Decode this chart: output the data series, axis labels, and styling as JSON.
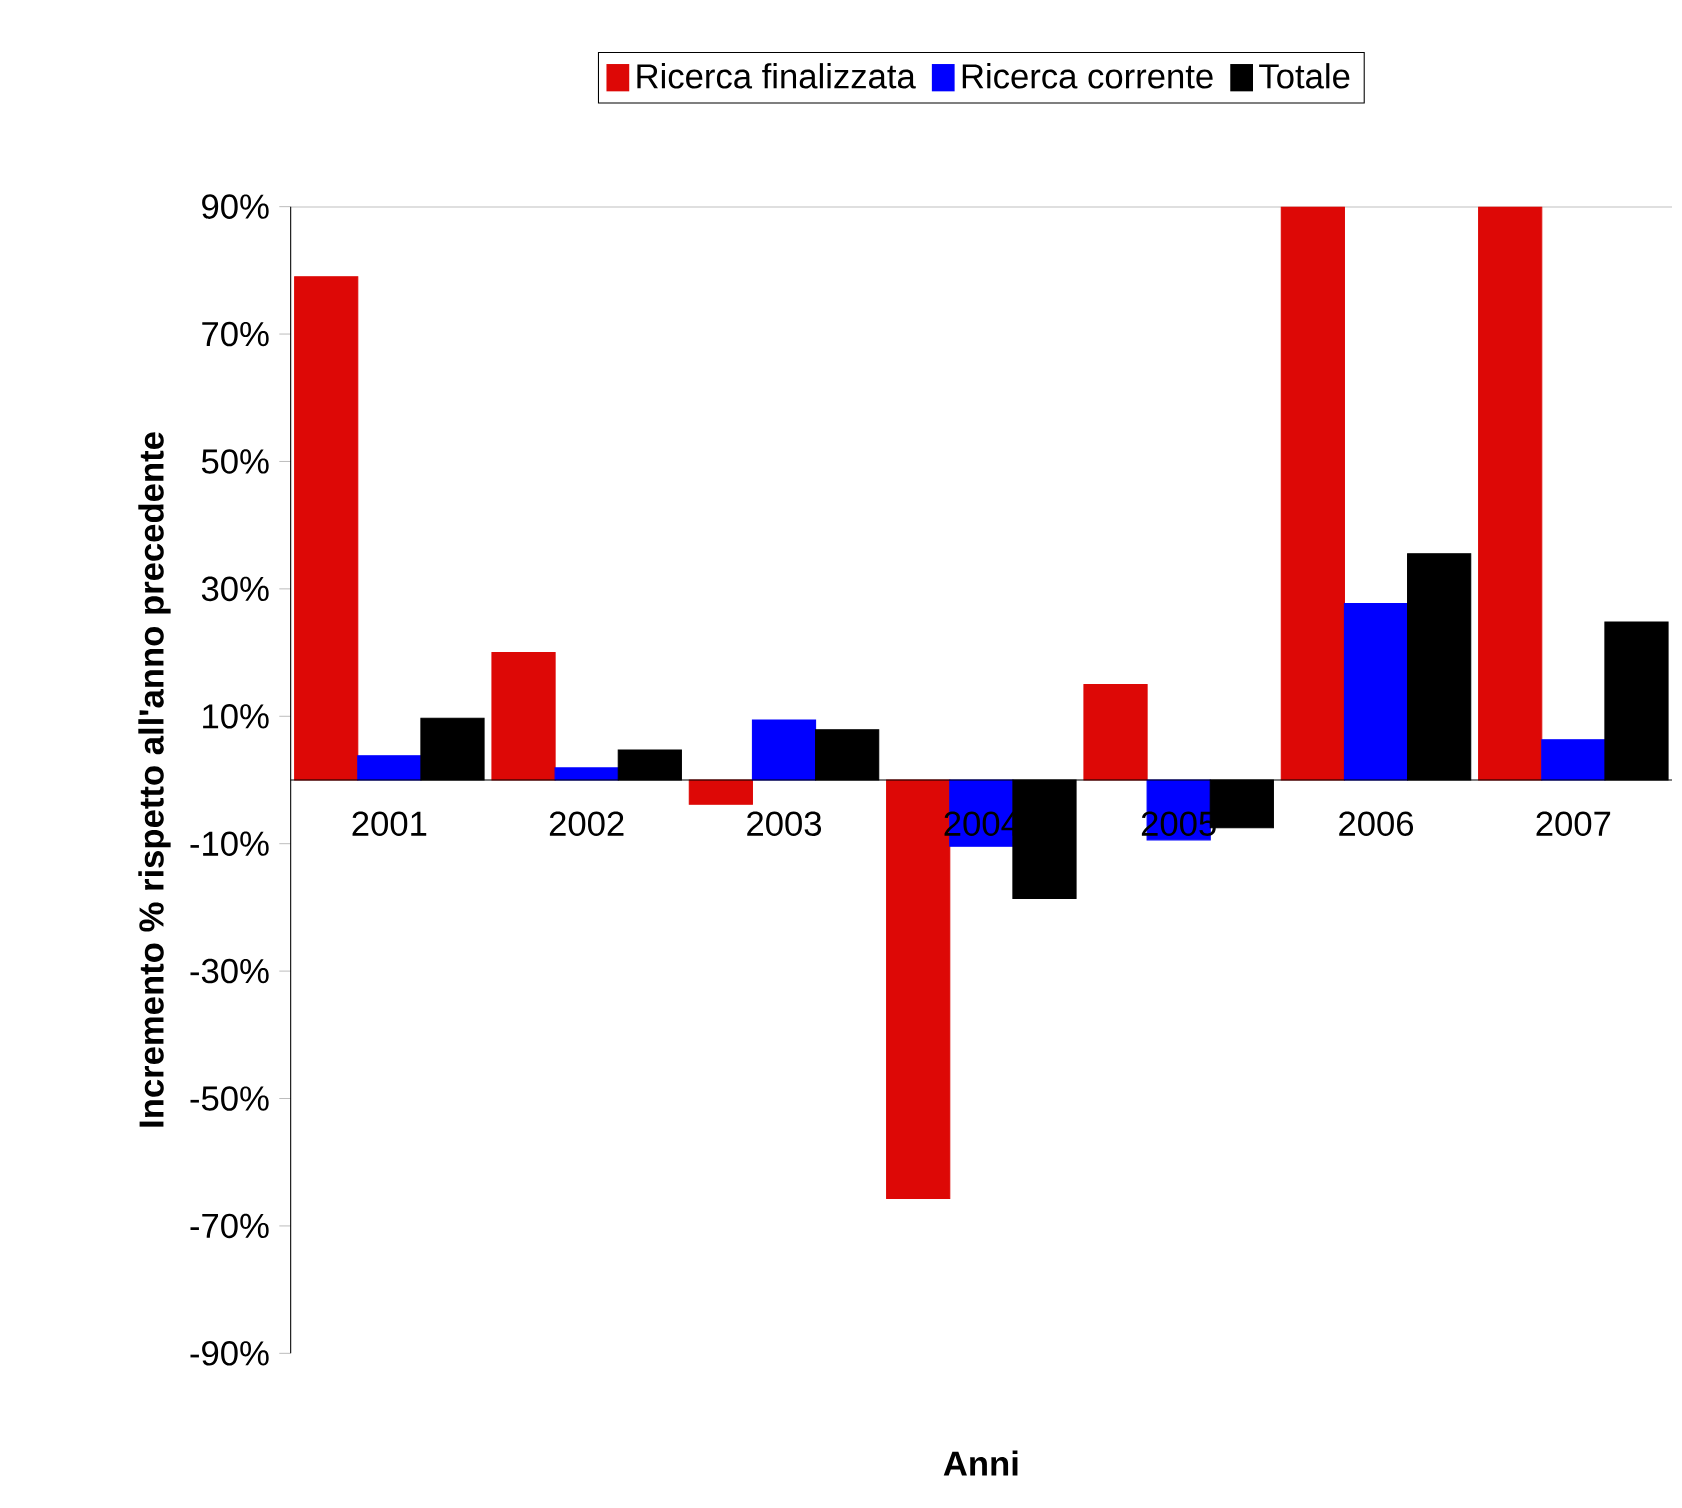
{
  "chart_data": {
    "type": "bar",
    "xlabel": "Anni",
    "ylabel": "Incremento % rispetto all'anno precedente",
    "categories": [
      "2001",
      "2002",
      "2003",
      "2004",
      "2005",
      "2006",
      "2007"
    ],
    "series": [
      {
        "name": "Ricerca finalizzata",
        "color": "#dd0806",
        "values": [
          79,
          20,
          -3.8,
          -65.7,
          15,
          90,
          90
        ]
      },
      {
        "name": "Ricerca corrente",
        "color": "#0000ff",
        "values": [
          3.8,
          1.9,
          9.4,
          -10.4,
          -9.4,
          27.7,
          6.3
        ]
      },
      {
        "name": "Totale",
        "color": "#000000",
        "values": [
          9.7,
          4.7,
          7.9,
          -18.6,
          -7.5,
          35.5,
          24.8
        ]
      }
    ],
    "ylim": [
      -90,
      90
    ],
    "yticks": [
      {
        "value": -90,
        "label": "-90%"
      },
      {
        "value": -70,
        "label": "-70%"
      },
      {
        "value": -50,
        "label": "-50%"
      },
      {
        "value": -30,
        "label": "-30%"
      },
      {
        "value": -10,
        "label": "-10%"
      },
      {
        "value": 10,
        "label": "10%"
      },
      {
        "value": 30,
        "label": "30%"
      },
      {
        "value": 50,
        "label": "50%"
      },
      {
        "value": 70,
        "label": "70%"
      },
      {
        "value": 90,
        "label": "90%"
      }
    ],
    "grid": false,
    "legend": "top"
  }
}
